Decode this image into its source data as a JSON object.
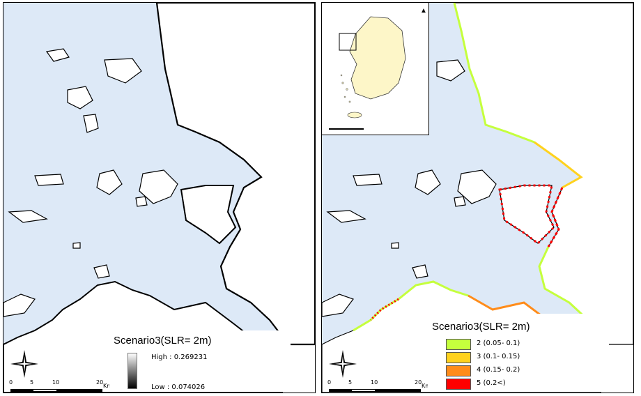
{
  "left_panel": {
    "legend_title": "Scenario3(SLR= 2m)",
    "gradient_high": "High : 0.269231",
    "gradient_low": "Low : 0.074026",
    "scale": {
      "t0": "0",
      "t1": "5",
      "t2": "10",
      "t3": "20",
      "unit": "Km"
    }
  },
  "right_panel": {
    "legend_title": "Scenario3(SLR= 2m)",
    "classes": [
      {
        "label": "2 (0.05- 0.1)",
        "color": "#c5ff3d"
      },
      {
        "label": "3 (0.1- 0.15)",
        "color": "#ffd21e"
      },
      {
        "label": "4 (0.15- 0.2)",
        "color": "#ff8c1a"
      },
      {
        "label": "5 (0.2<)",
        "color": "#ff0000"
      }
    ],
    "scale": {
      "t0": "0",
      "t1": "5",
      "t2": "10",
      "t3": "20",
      "unit": "Km"
    }
  },
  "colors": {
    "sea": "#dde9f7",
    "land": "#ffffff",
    "korea": "#fdf6c8"
  },
  "icons": {
    "north_arrow": "compass-rose-icon",
    "inset_north": "north-arrow-icon"
  }
}
